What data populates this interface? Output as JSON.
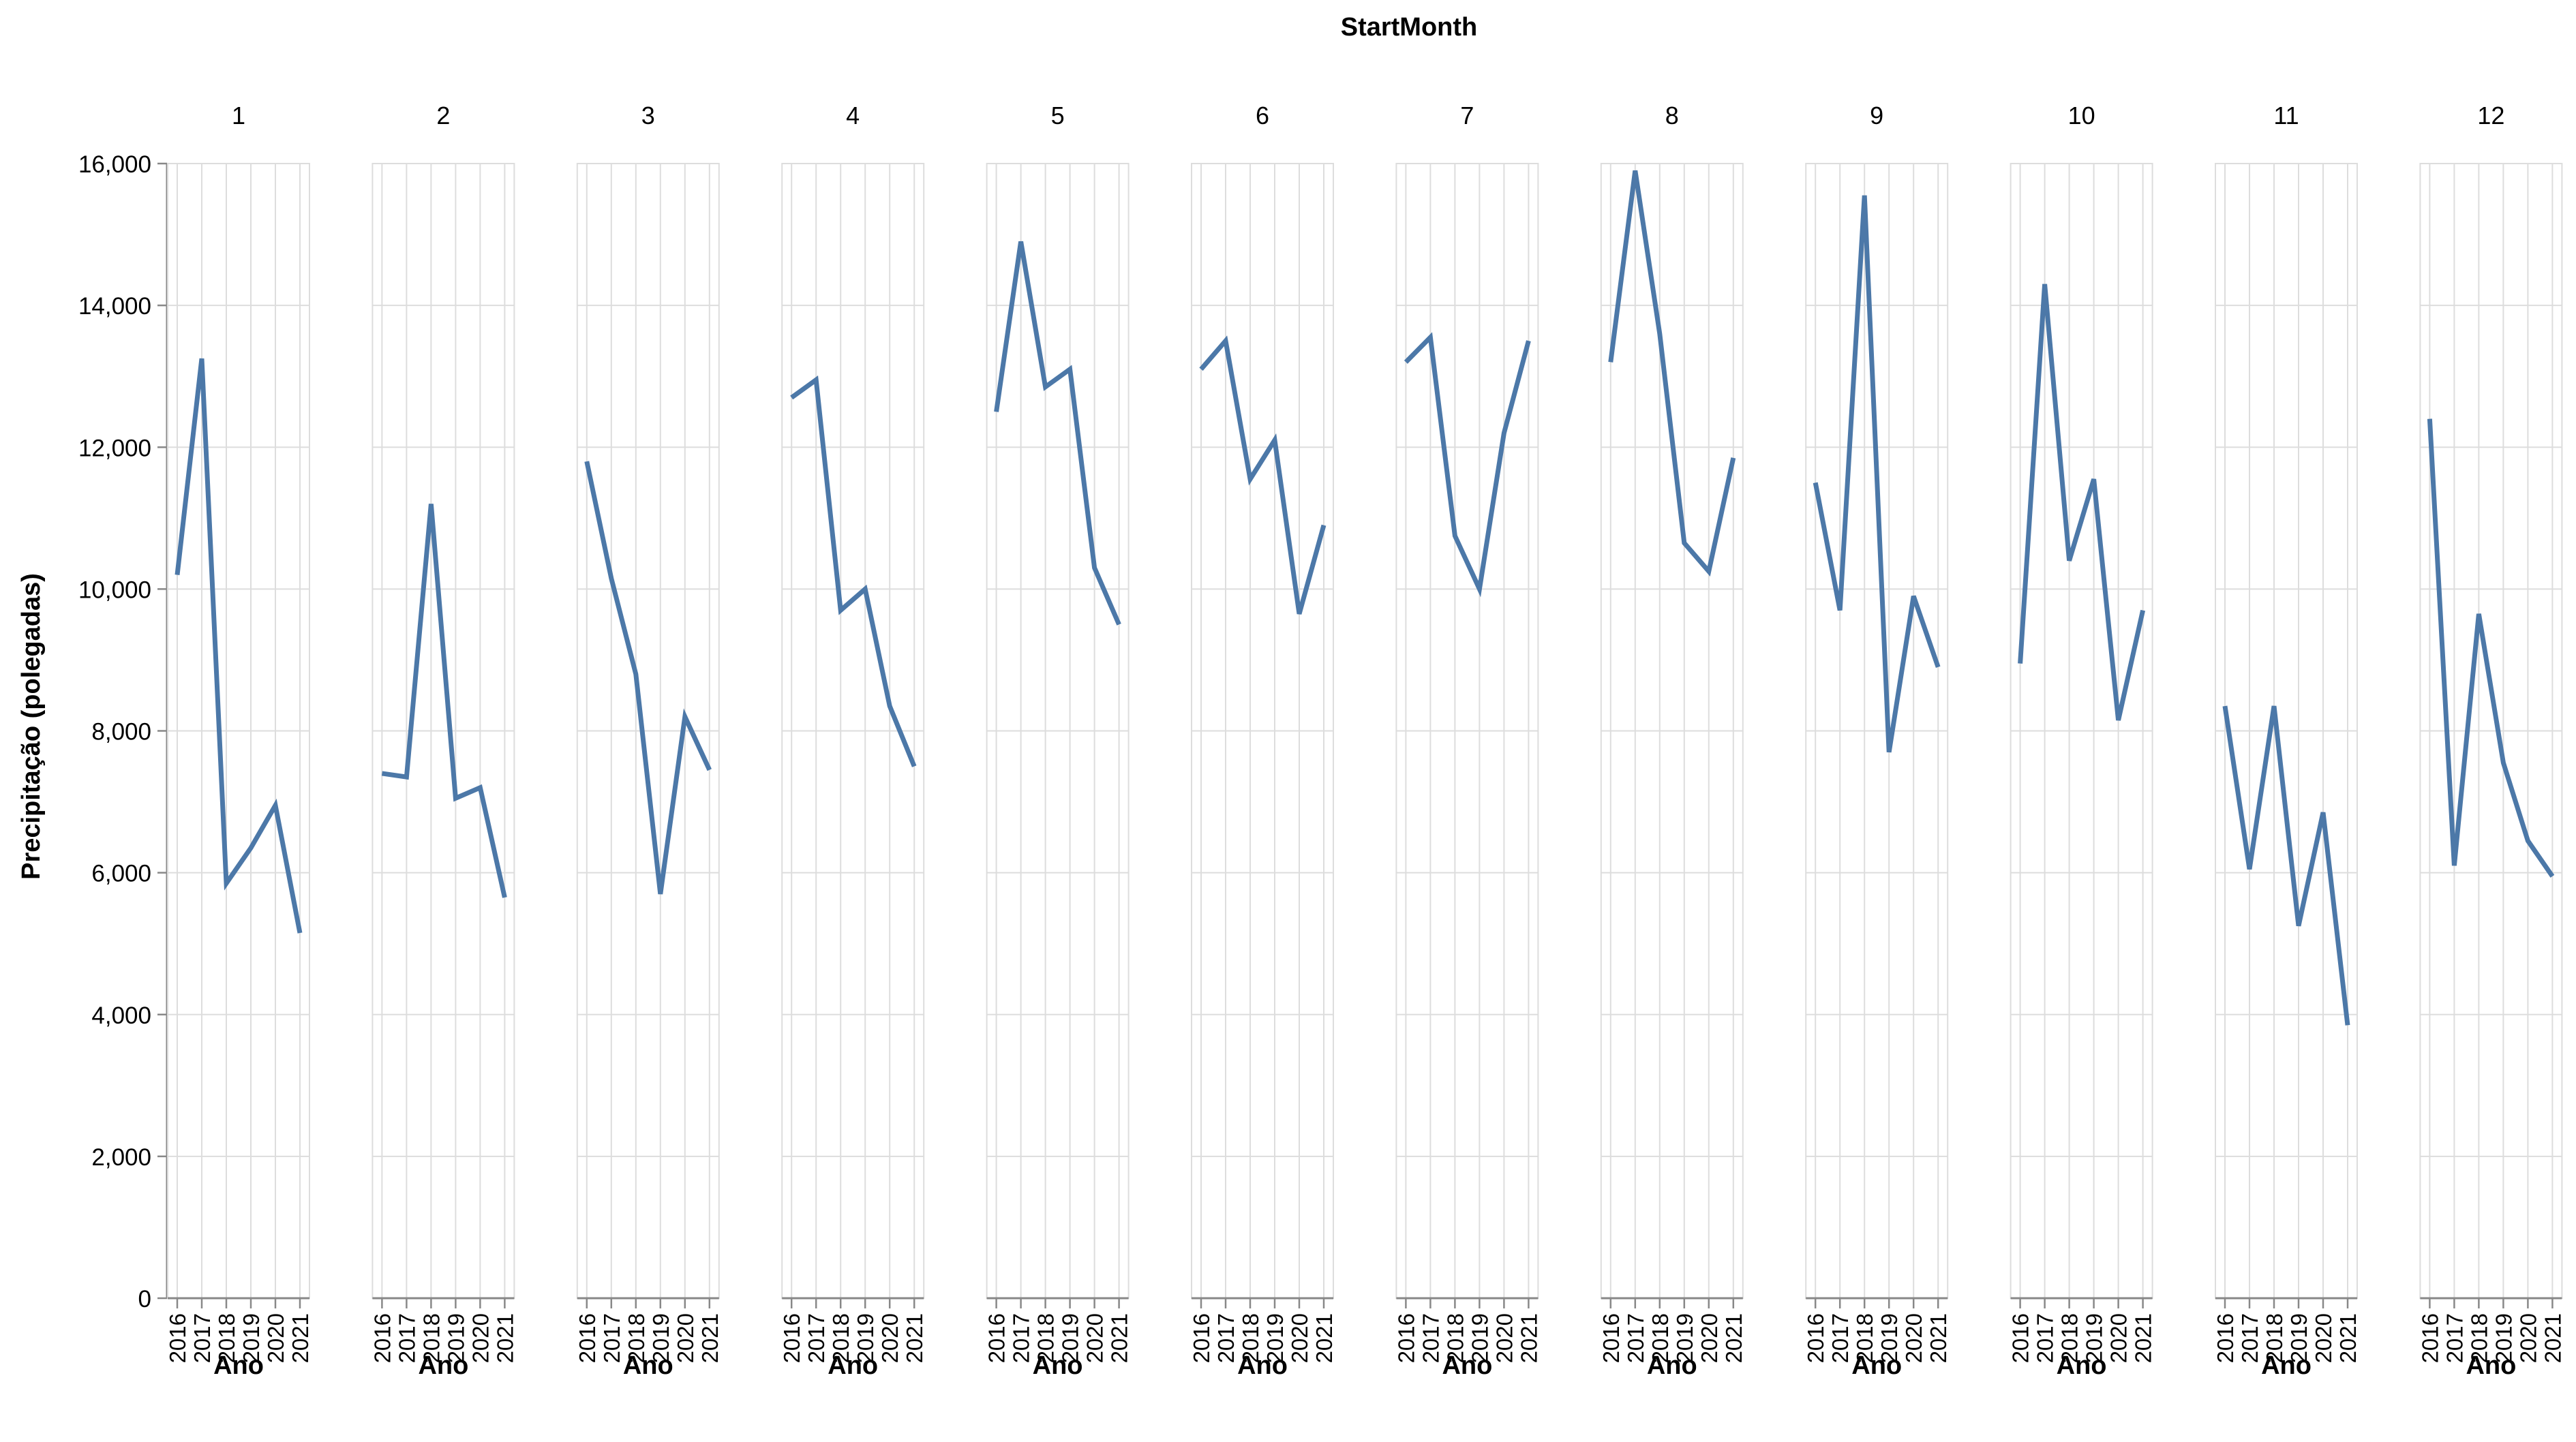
{
  "chart_data": {
    "type": "line",
    "facet_title": "StartMonth",
    "facets": [
      "1",
      "2",
      "3",
      "4",
      "5",
      "6",
      "7",
      "8",
      "9",
      "10",
      "11",
      "12"
    ],
    "x": [
      "2016",
      "2017",
      "2018",
      "2019",
      "2020",
      "2021"
    ],
    "xlabel": "Ano",
    "ylabel": "Precipitação (polegadas)",
    "ylim": [
      0,
      16000
    ],
    "yticks": [
      0,
      2000,
      4000,
      6000,
      8000,
      10000,
      12000,
      14000,
      16000
    ],
    "ytick_labels": [
      "0",
      "2,000",
      "4,000",
      "6,000",
      "8,000",
      "10,000",
      "12,000",
      "14,000",
      "16,000"
    ],
    "grid": true,
    "line_color": "#4c78a8",
    "series": [
      {
        "facet": "1",
        "values": [
          10200,
          13250,
          5850,
          6350,
          6950,
          5150
        ]
      },
      {
        "facet": "2",
        "values": [
          7400,
          7350,
          11200,
          7050,
          7200,
          5650
        ]
      },
      {
        "facet": "3",
        "values": [
          11800,
          10150,
          8800,
          5700,
          8200,
          7450
        ]
      },
      {
        "facet": "4",
        "values": [
          12700,
          12950,
          9700,
          10000,
          8350,
          7500
        ]
      },
      {
        "facet": "5",
        "values": [
          12500,
          14900,
          12850,
          13100,
          10300,
          9500
        ]
      },
      {
        "facet": "6",
        "values": [
          13100,
          13500,
          11550,
          12100,
          9650,
          10900
        ]
      },
      {
        "facet": "7",
        "values": [
          13200,
          13550,
          10750,
          10000,
          12200,
          13500
        ]
      },
      {
        "facet": "8",
        "values": [
          13200,
          15900,
          13600,
          10650,
          10250,
          11850
        ]
      },
      {
        "facet": "9",
        "values": [
          11500,
          9700,
          15550,
          7700,
          9900,
          8900
        ]
      },
      {
        "facet": "10",
        "values": [
          8950,
          14300,
          10400,
          11550,
          8150,
          9700
        ]
      },
      {
        "facet": "11",
        "values": [
          8350,
          6050,
          8350,
          5250,
          6850,
          3850
        ]
      },
      {
        "facet": "12",
        "values": [
          12400,
          6100,
          9650,
          7550,
          6450,
          5950
        ]
      }
    ]
  }
}
